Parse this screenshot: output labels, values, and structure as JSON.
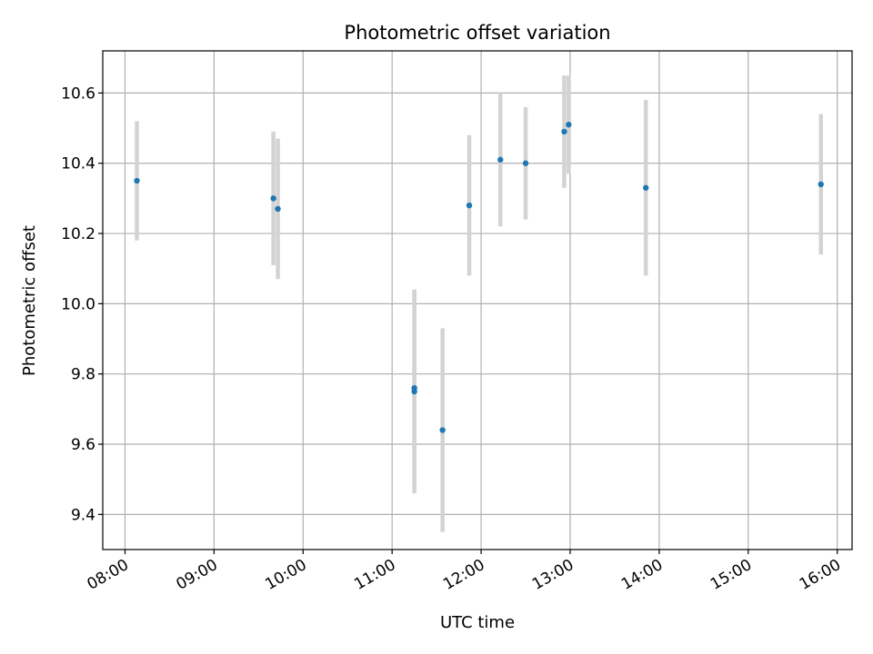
{
  "chart_data": {
    "type": "scatter",
    "title": "Photometric offset variation",
    "xlabel": "UTC time",
    "ylabel": "Photometric offset",
    "x_ticks": [
      "08:00",
      "09:00",
      "10:00",
      "11:00",
      "12:00",
      "13:00",
      "14:00",
      "15:00",
      "16:00"
    ],
    "y_ticks": [
      "9.4",
      "9.6",
      "9.8",
      "10.0",
      "10.2",
      "10.4",
      "10.6"
    ],
    "xlim": [
      "07:45",
      "16:10"
    ],
    "ylim": [
      9.3,
      10.72
    ],
    "grid": true,
    "series": [
      {
        "marker_color": "#1f77b4",
        "errorbar_color": "#d3d3d3",
        "points": [
          {
            "x": "08:08",
            "y": 10.35,
            "yerr": 0.17
          },
          {
            "x": "09:40",
            "y": 10.3,
            "yerr": 0.19
          },
          {
            "x": "09:43",
            "y": 10.27,
            "yerr": 0.2
          },
          {
            "x": "11:15",
            "y": 9.76,
            "yerr": 0.28
          },
          {
            "x": "11:15",
            "y": 9.75,
            "yerr": 0.29
          },
          {
            "x": "11:34",
            "y": 9.64,
            "yerr": 0.29
          },
          {
            "x": "11:52",
            "y": 10.28,
            "yerr": 0.2
          },
          {
            "x": "12:13",
            "y": 10.41,
            "yerr": 0.19
          },
          {
            "x": "12:30",
            "y": 10.4,
            "yerr": 0.16
          },
          {
            "x": "12:56",
            "y": 10.49,
            "yerr": 0.16
          },
          {
            "x": "12:59",
            "y": 10.51,
            "yerr": 0.14
          },
          {
            "x": "13:51",
            "y": 10.33,
            "yerr": 0.25
          },
          {
            "x": "15:49",
            "y": 10.34,
            "yerr": 0.2
          }
        ]
      }
    ]
  }
}
